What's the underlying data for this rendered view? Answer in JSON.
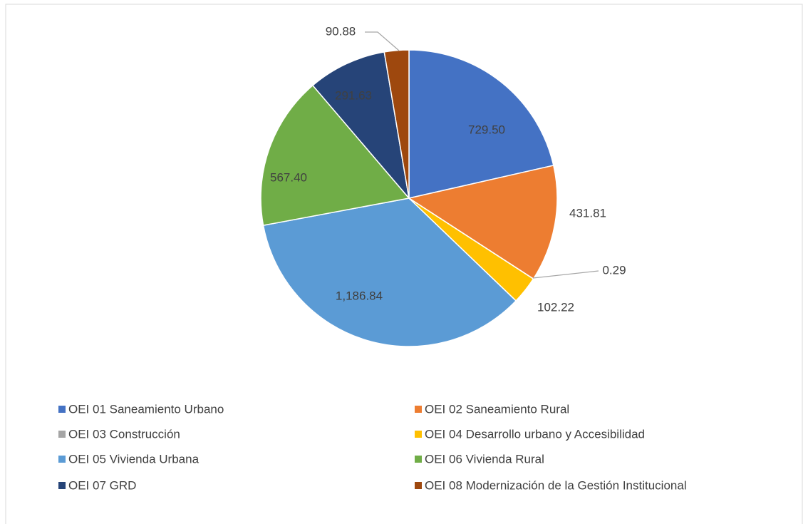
{
  "chart_data": {
    "type": "pie",
    "categories": [
      "OEI 01 Saneamiento Urbano",
      "OEI 02 Saneamiento Rural",
      "OEI 03 Construcción",
      "OEI 04 Desarrollo urbano y Accesibilidad",
      "OEI 05 Vivienda Urbana",
      "OEI 06 Vivienda Rural",
      "OEI 07 GRD",
      "OEI 08 Modernización de la Gestión Institucional"
    ],
    "values": [
      729.5,
      431.81,
      0.29,
      102.22,
      1186.84,
      567.4,
      291.63,
      90.88
    ],
    "value_labels": [
      "729.50",
      "431.81",
      "0.29",
      "102.22",
      "1,186.84",
      "567.40",
      "291.63",
      "90.88"
    ],
    "colors": [
      "#4472c4",
      "#ed7d31",
      "#a5a5a5",
      "#ffc000",
      "#5b9bd5",
      "#70ad47",
      "#264478",
      "#9e480e"
    ]
  }
}
